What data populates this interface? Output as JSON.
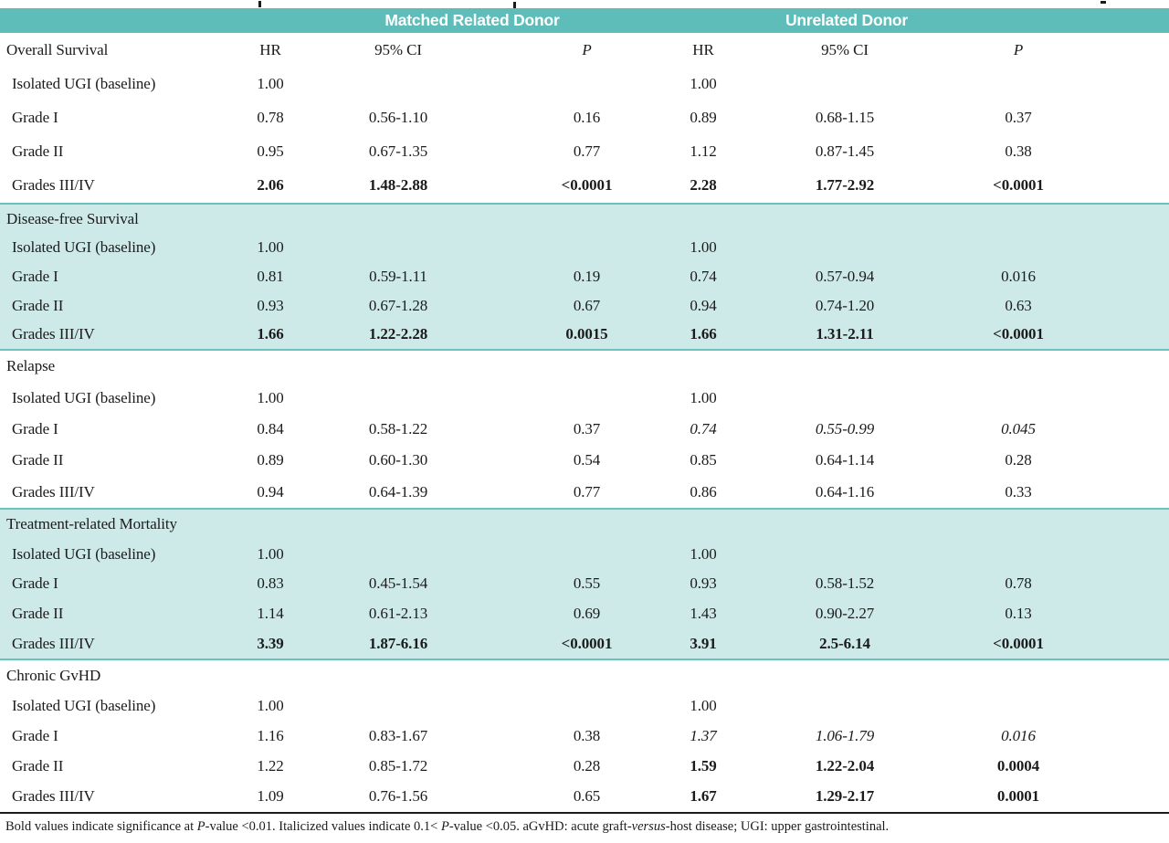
{
  "colors": {
    "band_teal": "#5fbdb9",
    "row_shade": "#cdeae9",
    "divider_teal": "#6cc2be",
    "footnote_rule": "#1b1b1b"
  },
  "table": {
    "group_headers": {
      "mrd": "Matched Related Donor",
      "ud": "Unrelated Donor"
    },
    "column_headers": [
      "HR",
      "95% CI",
      "P",
      "HR",
      "95% CI",
      "P"
    ],
    "column_header_styles": [
      "normal",
      "normal",
      "italic",
      "normal",
      "normal",
      "italic"
    ],
    "sections": [
      {
        "title": "Overall Survival",
        "shaded": false,
        "has_column_headers": true,
        "rows": [
          {
            "label": "Isolated UGI (baseline)",
            "values": [
              "1.00",
              "",
              "",
              "1.00",
              "",
              ""
            ]
          },
          {
            "label": "Grade I",
            "values": [
              "0.78",
              "0.56-1.10",
              "0.16",
              "0.89",
              "0.68-1.15",
              "0.37"
            ]
          },
          {
            "label": "Grade II",
            "values": [
              "0.95",
              "0.67-1.35",
              "0.77",
              "1.12",
              "0.87-1.45",
              "0.38"
            ]
          },
          {
            "label": "Grades III/IV",
            "values": [
              "2.06",
              "1.48-2.88",
              "<0.0001",
              "2.28",
              "1.77-2.92",
              "<0.0001"
            ],
            "styles": [
              "bold",
              "bold",
              "bold",
              "bold",
              "bold",
              "bold"
            ]
          }
        ]
      },
      {
        "title": "Disease-free Survival",
        "shaded": true,
        "has_column_headers": false,
        "rows": [
          {
            "label": "Isolated UGI (baseline)",
            "values": [
              "1.00",
              "",
              "",
              "1.00",
              "",
              ""
            ]
          },
          {
            "label": "Grade I",
            "values": [
              "0.81",
              "0.59-1.11",
              "0.19",
              "0.74",
              "0.57-0.94",
              "0.016"
            ]
          },
          {
            "label": "Grade II",
            "values": [
              "0.93",
              "0.67-1.28",
              "0.67",
              "0.94",
              "0.74-1.20",
              "0.63"
            ]
          },
          {
            "label": "Grades III/IV",
            "values": [
              "1.66",
              "1.22-2.28",
              "0.0015",
              "1.66",
              "1.31-2.11",
              "<0.0001"
            ],
            "styles": [
              "bold",
              "bold",
              "bold",
              "bold",
              "bold",
              "bold"
            ]
          }
        ]
      },
      {
        "title": "Relapse",
        "shaded": false,
        "has_column_headers": false,
        "rows": [
          {
            "label": "Isolated UGI (baseline)",
            "values": [
              "1.00",
              "",
              "",
              "1.00",
              "",
              ""
            ]
          },
          {
            "label": "Grade I",
            "values": [
              "0.84",
              "0.58-1.22",
              "0.37",
              "0.74",
              "0.55-0.99",
              "0.045"
            ],
            "styles": [
              "normal",
              "normal",
              "normal",
              "italic",
              "italic",
              "italic"
            ]
          },
          {
            "label": "Grade II",
            "values": [
              "0.89",
              "0.60-1.30",
              "0.54",
              "0.85",
              "0.64-1.14",
              "0.28"
            ]
          },
          {
            "label": "Grades III/IV",
            "values": [
              "0.94",
              "0.64-1.39",
              "0.77",
              "0.86",
              "0.64-1.16",
              "0.33"
            ]
          }
        ]
      },
      {
        "title": "Treatment-related Mortality",
        "shaded": true,
        "has_column_headers": false,
        "rows": [
          {
            "label": "Isolated UGI (baseline)",
            "values": [
              "1.00",
              "",
              "",
              "1.00",
              "",
              ""
            ]
          },
          {
            "label": "Grade I",
            "values": [
              "0.83",
              "0.45-1.54",
              "0.55",
              "0.93",
              "0.58-1.52",
              "0.78"
            ]
          },
          {
            "label": "Grade II",
            "values": [
              "1.14",
              "0.61-2.13",
              "0.69",
              "1.43",
              "0.90-2.27",
              "0.13"
            ]
          },
          {
            "label": "Grades III/IV",
            "values": [
              "3.39",
              "1.87-6.16",
              "<0.0001",
              "3.91",
              "2.5-6.14",
              "<0.0001"
            ],
            "styles": [
              "bold",
              "bold",
              "bold",
              "bold",
              "bold",
              "bold"
            ]
          }
        ]
      },
      {
        "title": "Chronic GvHD",
        "shaded": false,
        "has_column_headers": false,
        "rows": [
          {
            "label": "Isolated UGI (baseline)",
            "values": [
              "1.00",
              "",
              "",
              "1.00",
              "",
              ""
            ]
          },
          {
            "label": "Grade I",
            "values": [
              "1.16",
              "0.83-1.67",
              "0.38",
              "1.37",
              "1.06-1.79",
              "0.016"
            ],
            "styles": [
              "normal",
              "normal",
              "normal",
              "italic",
              "italic",
              "italic"
            ]
          },
          {
            "label": "Grade II",
            "values": [
              "1.22",
              "0.85-1.72",
              "0.28",
              "1.59",
              "1.22-2.04",
              "0.0004"
            ],
            "styles": [
              "normal",
              "normal",
              "normal",
              "bold",
              "bold",
              "bold"
            ]
          },
          {
            "label": "Grades III/IV",
            "values": [
              "1.09",
              "0.76-1.56",
              "0.65",
              "1.67",
              "1.29-2.17",
              "0.0001"
            ],
            "styles": [
              "normal",
              "normal",
              "normal",
              "bold",
              "bold",
              "bold"
            ]
          }
        ]
      }
    ]
  },
  "footnote": {
    "segments": [
      {
        "text": "Bold values indicate significance at ",
        "style": "normal"
      },
      {
        "text": "P",
        "style": "italic"
      },
      {
        "text": "-value <0.01. Italicized values indicate 0.1< ",
        "style": "normal"
      },
      {
        "text": "P",
        "style": "italic"
      },
      {
        "text": "-value <0.05. aGvHD: acute graft-",
        "style": "normal"
      },
      {
        "text": "versus",
        "style": "italic"
      },
      {
        "text": "-host disease; UGI: upper gastrointestinal.",
        "style": "normal"
      }
    ]
  }
}
